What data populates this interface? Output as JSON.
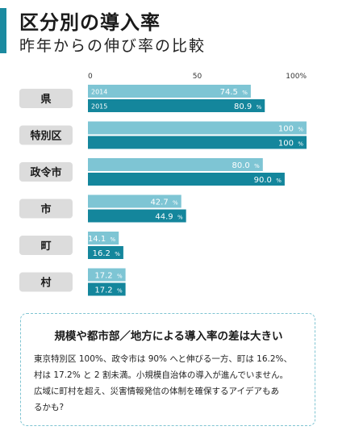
{
  "header": {
    "title": "区分別の導入率",
    "subtitle": "昨年からの伸び率の比較"
  },
  "chart_data": {
    "type": "bar",
    "orientation": "horizontal",
    "title": "区分別の導入率",
    "subtitle": "昨年からの伸び率の比較",
    "xlim": [
      0,
      100
    ],
    "ticks": [
      {
        "value": 0,
        "label": "0"
      },
      {
        "value": 50,
        "label": "50"
      },
      {
        "value": 100,
        "label": "100%"
      }
    ],
    "categories": [
      "県",
      "特別区",
      "政令市",
      "市",
      "町",
      "村"
    ],
    "series": [
      {
        "name": "2014",
        "color": "#7ec5d4",
        "values": [
          74.5,
          100,
          80.0,
          42.7,
          14.1,
          17.2
        ],
        "labels": [
          "74.5",
          "100",
          "80.0",
          "42.7",
          "14.1",
          "17.2"
        ]
      },
      {
        "name": "2015",
        "color": "#14869c",
        "values": [
          80.9,
          100,
          90.0,
          44.9,
          16.2,
          17.2
        ],
        "labels": [
          "80.9",
          "100",
          "90.0",
          "44.9",
          "16.2",
          "17.2"
        ]
      }
    ],
    "unit": "%",
    "category_box_color": "#dcdcdc",
    "grid": false,
    "legend": "inline on first category bars"
  },
  "note": {
    "heading": "規模や都市部／地方による導入率の差は大きい",
    "lines": [
      "東京特別区 100%、政令市は 90% へと伸びる一方、町は 16.2%、",
      "村は 17.2% と 2 割未満。小規模自治体の導入が進んでいません。",
      "広域に町村を超え、災害情報発信の体制を確保するアイデアもあ",
      "るかも?"
    ]
  }
}
